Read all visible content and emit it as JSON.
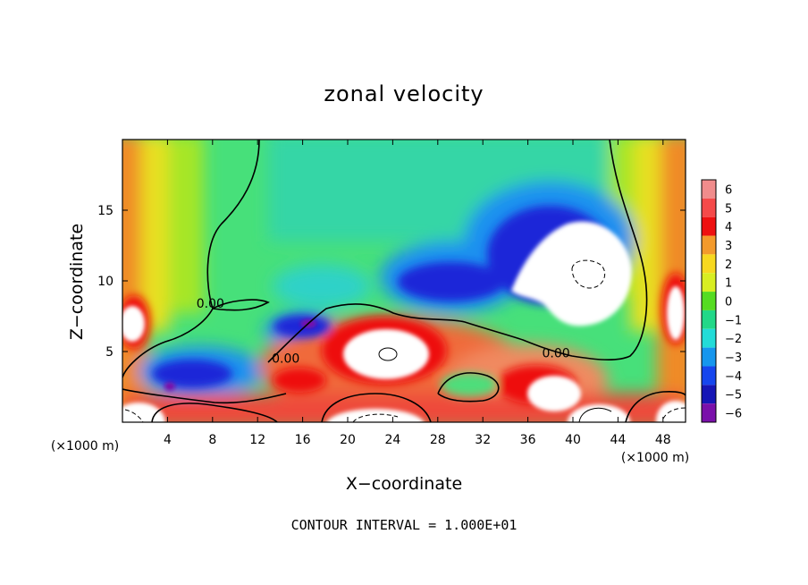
{
  "chart_data": {
    "type": "heatmap",
    "title": "zonal velocity",
    "xlabel": "X−coordinate",
    "ylabel": "Z−coordinate",
    "x_unit_left": "(×1000 m)",
    "x_unit_right": "(×1000 m)",
    "footer": "CONTOUR INTERVAL = 1.000E+01",
    "xlim": [
      0,
      50
    ],
    "ylim": [
      0,
      20
    ],
    "x_ticks": [
      4,
      8,
      12,
      16,
      20,
      24,
      28,
      32,
      36,
      40,
      44,
      48
    ],
    "x_tick_labels": [
      "4",
      "8",
      "12",
      "16",
      "20",
      "24",
      "28",
      "32",
      "36",
      "40",
      "44",
      "48"
    ],
    "y_ticks": [
      5,
      10,
      15
    ],
    "y_tick_labels": [
      "5",
      "10",
      "15"
    ],
    "contour_labels": [
      {
        "text": "0.00",
        "x": 7.8,
        "y": 8.1
      },
      {
        "text": "0.00",
        "x": 14.5,
        "y": 4.2
      },
      {
        "text": "0.00",
        "x": 38.5,
        "y": 4.6
      }
    ],
    "colorbar": {
      "levels": [
        6,
        5,
        4,
        3,
        2,
        1,
        0,
        -1,
        -2,
        -3,
        -4,
        -5,
        -6
      ],
      "level_labels": [
        "6",
        "5",
        "4",
        "3",
        "2",
        "1",
        "0",
        "−1",
        "−2",
        "−3",
        "−4",
        "−5",
        "−6"
      ],
      "colors": [
        "#f08c8c",
        "#f54a4a",
        "#ee1111",
        "#f39a2c",
        "#f7d820",
        "#d8ee22",
        "#55dc22",
        "#22d888",
        "#22dcd8",
        "#1696ee",
        "#1646ee",
        "#1616b6",
        "#7a10aa"
      ]
    },
    "colors": {
      "background": "#ffffff",
      "field": "#47e07a",
      "positive_strong": "#ee2020",
      "negative_strong": "#1a1ad0",
      "saturated": "#ffffff"
    }
  }
}
